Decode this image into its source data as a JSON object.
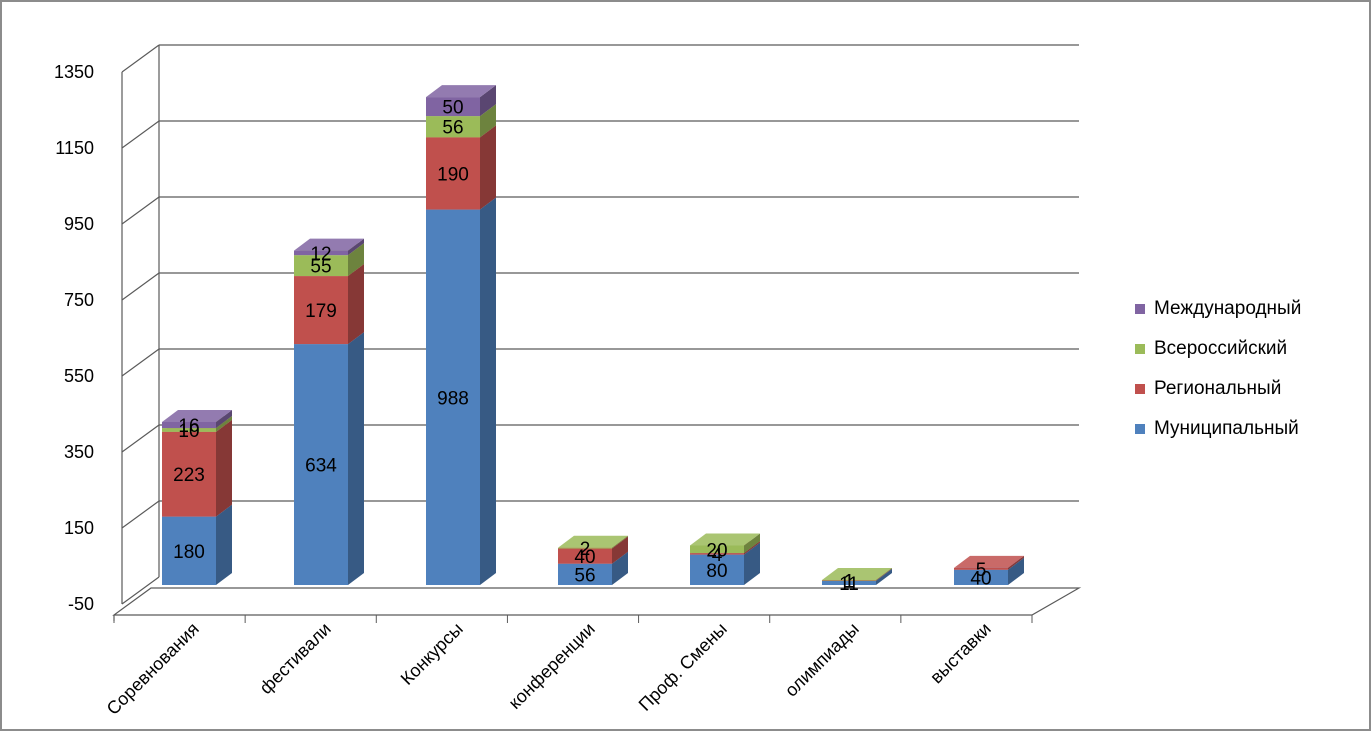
{
  "chart_data": {
    "type": "bar",
    "stacked": true,
    "three_d": true,
    "categories": [
      "Соревнования",
      "фестивали",
      "Конкурсы",
      "конференции",
      "Проф. Смены",
      "олимпиады",
      "выставки"
    ],
    "series": [
      {
        "name": "Муниципальный",
        "color": "#4f81bd",
        "values": [
          180,
          634,
          988,
          56,
          80,
          11,
          40
        ]
      },
      {
        "name": "Региональный",
        "color": "#c0504d",
        "values": [
          223,
          179,
          190,
          40,
          4,
          1,
          5
        ]
      },
      {
        "name": "Всероссийский",
        "color": "#9bbb59",
        "values": [
          10,
          55,
          56,
          2,
          20,
          1,
          0
        ]
      },
      {
        "name": "Международный",
        "color": "#8064a2",
        "values": [
          16,
          12,
          50,
          0,
          0,
          0,
          0
        ]
      }
    ],
    "data_labels": [
      [
        "180",
        "634",
        "988",
        "56",
        "80",
        "11",
        "40"
      ],
      [
        "223",
        "179",
        "190",
        "40",
        "4",
        "1",
        "5"
      ],
      [
        "10",
        "55",
        "56",
        "2",
        "20",
        "1",
        ""
      ],
      [
        "16",
        "12",
        "50",
        "",
        "",
        "",
        ""
      ]
    ],
    "y_ticks": [
      "-50",
      "150",
      "350",
      "550",
      "750",
      "950",
      "1150",
      "1350"
    ],
    "ylim": [
      -50,
      1350
    ],
    "grid": true,
    "legend_position": "right",
    "legend_order": [
      "Международный",
      "Всероссийский",
      "Региональный",
      "Муниципальный"
    ]
  }
}
